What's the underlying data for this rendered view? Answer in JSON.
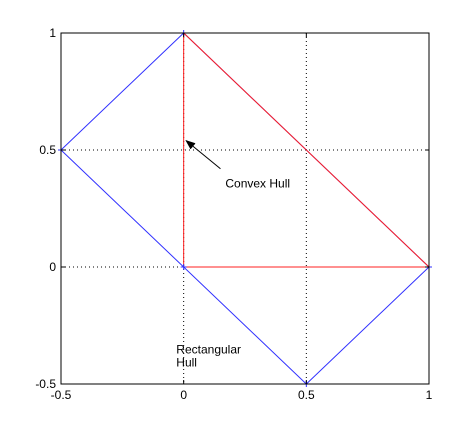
{
  "chart_data": {
    "type": "line",
    "xlim": [
      -0.5,
      1
    ],
    "ylim": [
      -0.5,
      1
    ],
    "xticks": [
      -0.5,
      0,
      0.5,
      1
    ],
    "xtick_labels": [
      "-0.5",
      "0",
      "0.5",
      "1"
    ],
    "yticks": [
      -0.5,
      0,
      0.5,
      1
    ],
    "ytick_labels": [
      "-0.5",
      "0",
      "0.5",
      "1"
    ],
    "grid": true,
    "grid_style": "dotted",
    "series": [
      {
        "color": "#3030ff",
        "marker": "+",
        "x": [
          0,
          1,
          0.5,
          -0.5,
          0
        ],
        "y": [
          1,
          0,
          -0.5,
          0.5,
          1
        ]
      },
      {
        "color": "#ff2020",
        "x": [
          0,
          1,
          0,
          0
        ],
        "y": [
          1,
          0,
          0,
          1
        ]
      }
    ],
    "markers": {
      "color": "#3030ff",
      "x": [
        0,
        1,
        0.5,
        -0.5,
        0
      ],
      "y": [
        1,
        0,
        -0.5,
        0.5,
        0
      ]
    },
    "annotations": [
      {
        "lines": [
          "Convex Hull"
        ],
        "arrow": true,
        "arrow_head": [
          0.01,
          0.54
        ],
        "arrow_tail": [
          0.15,
          0.42
        ],
        "text_at": [
          0.17,
          0.34
        ]
      },
      {
        "lines": [
          "Rectangular",
          "Hull"
        ],
        "arrow": false,
        "text_at": [
          -0.03,
          -0.37
        ]
      }
    ]
  }
}
